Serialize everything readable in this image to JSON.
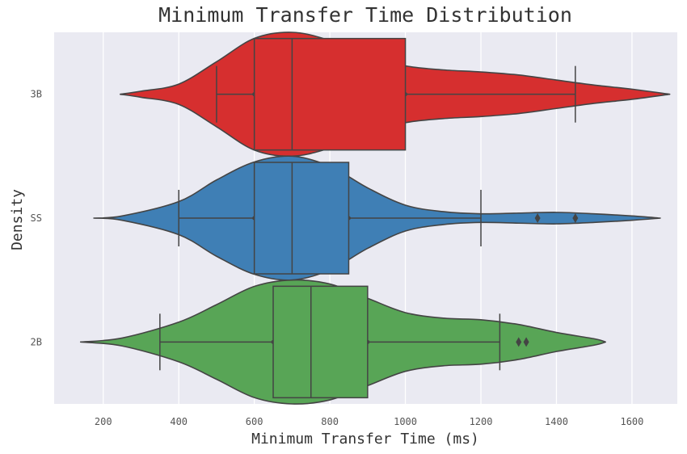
{
  "chart_data": {
    "type": "violin+box",
    "orientation": "horizontal",
    "title": "Minimum Transfer Time Distribution",
    "xlabel": "Minimum Transfer Time (ms)",
    "ylabel": "Density",
    "xlim": [
      70,
      1720
    ],
    "xticks": [
      200,
      400,
      600,
      800,
      1000,
      1200,
      1400,
      1600
    ],
    "grid": true,
    "style": {
      "background": "#eaeaf2",
      "grid_color": "#ffffff",
      "edge_color": "#444444"
    },
    "categories": [
      "3B",
      "SS",
      "2B"
    ],
    "series": [
      {
        "name": "3B",
        "color": "#d62f2f",
        "box": {
          "q1": 600,
          "median": 700,
          "q3": 1000,
          "whisker_low": 500,
          "whisker_high": 1450
        },
        "violin_range": [
          245,
          1700
        ],
        "outliers": [],
        "density": [
          [
            245,
            0.0
          ],
          [
            300,
            0.03
          ],
          [
            400,
            0.1
          ],
          [
            500,
            0.32
          ],
          [
            600,
            0.55
          ],
          [
            700,
            0.61
          ],
          [
            800,
            0.53
          ],
          [
            900,
            0.38
          ],
          [
            1000,
            0.28
          ],
          [
            1100,
            0.24
          ],
          [
            1200,
            0.22
          ],
          [
            1300,
            0.19
          ],
          [
            1400,
            0.14
          ],
          [
            1500,
            0.09
          ],
          [
            1600,
            0.05
          ],
          [
            1700,
            0.0
          ]
        ]
      },
      {
        "name": "SS",
        "color": "#3f7fb5",
        "box": {
          "q1": 600,
          "median": 700,
          "q3": 850,
          "whisker_low": 400,
          "whisker_high": 1200
        },
        "violin_range": [
          175,
          1675
        ],
        "outliers": [
          1350,
          1450
        ],
        "density": [
          [
            175,
            0.0
          ],
          [
            250,
            0.03
          ],
          [
            400,
            0.23
          ],
          [
            500,
            0.53
          ],
          [
            600,
            0.78
          ],
          [
            700,
            0.86
          ],
          [
            800,
            0.72
          ],
          [
            900,
            0.42
          ],
          [
            1000,
            0.18
          ],
          [
            1100,
            0.09
          ],
          [
            1200,
            0.06
          ],
          [
            1300,
            0.07
          ],
          [
            1400,
            0.08
          ],
          [
            1500,
            0.06
          ],
          [
            1600,
            0.03
          ],
          [
            1675,
            0.0
          ]
        ]
      },
      {
        "name": "2B",
        "color": "#58a556",
        "box": {
          "q1": 650,
          "median": 750,
          "q3": 900,
          "whisker_low": 350,
          "whisker_high": 1250
        },
        "violin_range": [
          140,
          1530
        ],
        "outliers": [
          1300,
          1320
        ],
        "density": [
          [
            140,
            0.0
          ],
          [
            250,
            0.05
          ],
          [
            400,
            0.25
          ],
          [
            500,
            0.47
          ],
          [
            600,
            0.7
          ],
          [
            700,
            0.78
          ],
          [
            800,
            0.73
          ],
          [
            900,
            0.55
          ],
          [
            1000,
            0.37
          ],
          [
            1100,
            0.3
          ],
          [
            1200,
            0.28
          ],
          [
            1300,
            0.22
          ],
          [
            1400,
            0.12
          ],
          [
            1500,
            0.04
          ],
          [
            1530,
            0.0
          ]
        ]
      }
    ]
  }
}
